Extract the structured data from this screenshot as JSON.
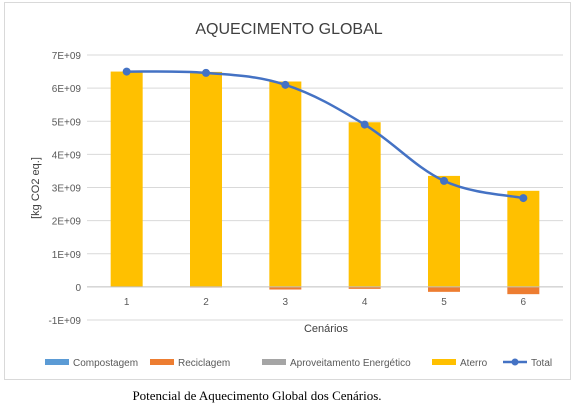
{
  "chart_data": {
    "type": "bar",
    "title": "AQUECIMENTO GLOBAL",
    "xlabel": "Cenários",
    "ylabel": "[kg CO2 eq.]",
    "categories": [
      "1",
      "2",
      "3",
      "4",
      "5",
      "6"
    ],
    "ylim": [
      -1000000000,
      7000000000
    ],
    "yticks": [
      -1000000000,
      0,
      1000000000,
      2000000000,
      3000000000,
      4000000000,
      5000000000,
      6000000000,
      7000000000
    ],
    "ytick_labels": [
      "-1E+09",
      "0",
      "1E+09",
      "2E+09",
      "3E+09",
      "4E+09",
      "5E+09",
      "6E+09",
      "7E+09"
    ],
    "stacked": true,
    "grid": true,
    "legend_position": "bottom",
    "series": [
      {
        "name": "Compostagem",
        "kind": "bar",
        "color": "#5b9bd5",
        "values": [
          0,
          0,
          0,
          0,
          0,
          0
        ]
      },
      {
        "name": "Reciclagem",
        "kind": "bar",
        "color": "#ed7d31",
        "values": [
          0,
          -20000000,
          -80000000,
          -60000000,
          -150000000,
          -220000000
        ]
      },
      {
        "name": "Aproveitamento Energético",
        "kind": "bar",
        "color": "#a5a5a5",
        "values": [
          0,
          0,
          0,
          0,
          0,
          0
        ]
      },
      {
        "name": "Aterro",
        "kind": "bar",
        "color": "#ffc000",
        "values": [
          6500000000,
          6490000000,
          6200000000,
          4970000000,
          3350000000,
          2900000000
        ]
      },
      {
        "name": "Total",
        "kind": "line",
        "color": "#4472c4",
        "values": [
          6500000000,
          6460000000,
          6100000000,
          4900000000,
          3200000000,
          2680000000
        ]
      }
    ]
  },
  "caption": "Potencial de Aquecimento Global dos Cenários."
}
